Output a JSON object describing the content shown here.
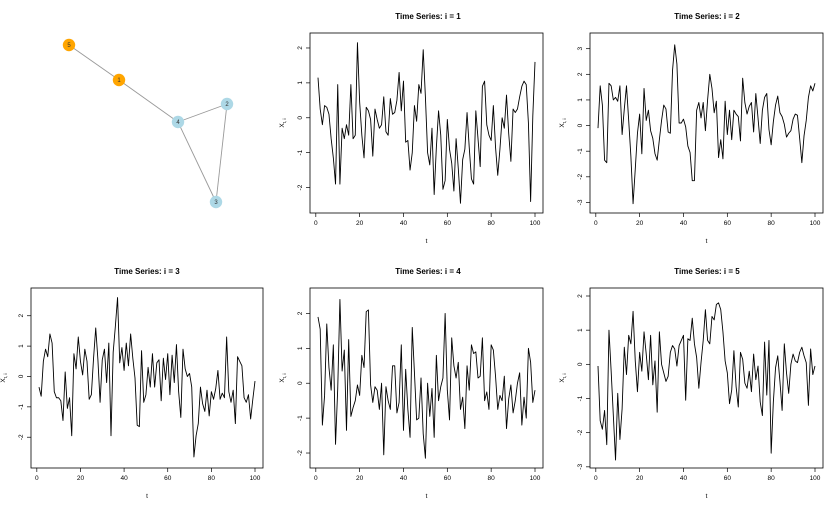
{
  "network": {
    "nodes": [
      {
        "id": "1",
        "color": "#FFA500"
      },
      {
        "id": "2",
        "color": "#ADD8E6"
      },
      {
        "id": "3",
        "color": "#ADD8E6"
      },
      {
        "id": "4",
        "color": "#ADD8E6"
      },
      {
        "id": "5",
        "color": "#FFA500"
      }
    ],
    "edges": [
      [
        "5",
        "1"
      ],
      [
        "1",
        "4"
      ],
      [
        "4",
        "2"
      ],
      [
        "4",
        "3"
      ],
      [
        "2",
        "3"
      ]
    ],
    "edge_color": "#999999"
  },
  "chart_data": [
    {
      "type": "line",
      "title": "Time Series: i = 1",
      "xlabel": "t",
      "ylabel": "X",
      "ylabel_subscript": "t, i",
      "xlim": [
        1,
        100
      ],
      "ylim": [
        -2.5,
        2.2
      ],
      "xticks": [
        0,
        20,
        40,
        60,
        80,
        100
      ],
      "yticks": [
        -2,
        -1,
        0,
        1,
        2
      ],
      "x": [
        1,
        2,
        3,
        4,
        5,
        6,
        7,
        8,
        9,
        10,
        11,
        12,
        13,
        14,
        15,
        16,
        17,
        18,
        19,
        20,
        21,
        22,
        23,
        24,
        25,
        26,
        27,
        28,
        29,
        30,
        31,
        32,
        33,
        34,
        35,
        36,
        37,
        38,
        39,
        40,
        41,
        42,
        43,
        44,
        45,
        46,
        47,
        48,
        49,
        50,
        51,
        52,
        53,
        54,
        55,
        56,
        57,
        58,
        59,
        60,
        61,
        62,
        63,
        64,
        65,
        66,
        67,
        68,
        69,
        70,
        71,
        72,
        73,
        74,
        75,
        76,
        77,
        78,
        79,
        80,
        81,
        82,
        83,
        84,
        85,
        86,
        87,
        88,
        89,
        90,
        91,
        92,
        93,
        94,
        95,
        96,
        97,
        98,
        99,
        100
      ],
      "series": [
        {
          "values": [
            1.15,
            0.25,
            -0.2,
            0.35,
            0.3,
            0.1,
            -0.6,
            -1.15,
            -1.9,
            0.95,
            -1.9,
            -0.3,
            -0.6,
            -0.2,
            -0.5,
            0.95,
            -0.6,
            -0.5,
            2.15,
            0.45,
            -0.5,
            -1.15,
            0.3,
            0.2,
            -0.05,
            -1.1,
            0.25,
            -0.05,
            -0.3,
            -0.2,
            0.6,
            -0.4,
            -0.5,
            0.55,
            0.1,
            0.15,
            0.5,
            1.3,
            0.2,
            1.05,
            -0.7,
            -0.65,
            -1.5,
            -1.0,
            0.35,
            -0.1,
            0.95,
            0.7,
            1.95,
            0.6,
            -1.0,
            -1.35,
            -0.3,
            -2.2,
            -0.85,
            0.2,
            -0.5,
            -2.05,
            -1.8,
            -0.05,
            -0.9,
            -1.3,
            -2.1,
            -0.6,
            -1.45,
            -2.45,
            -1.2,
            -0.9,
            0.15,
            -0.85,
            -1.75,
            -1.9,
            0.2,
            -0.6,
            -1.4,
            0.9,
            1.05,
            -0.2,
            -0.5,
            -0.65,
            0.35,
            -0.85,
            -1.65,
            -0.9,
            0.0,
            -0.3,
            0.65,
            -0.45,
            -1.25,
            0.25,
            0.15,
            0.25,
            0.6,
            0.9,
            1.05,
            0.95,
            -0.15,
            -2.4,
            0.05,
            1.6
          ]
        }
      ]
    },
    {
      "type": "line",
      "title": "Time Series: i = 2",
      "xlabel": "t",
      "ylabel": "X",
      "ylabel_subscript": "t, i",
      "xlim": [
        1,
        100
      ],
      "ylim": [
        -3.1,
        3.3
      ],
      "xticks": [
        0,
        20,
        40,
        60,
        80,
        100
      ],
      "yticks": [
        -3,
        -2,
        -1,
        0,
        1,
        2,
        3
      ],
      "x": [
        1,
        2,
        3,
        4,
        5,
        6,
        7,
        8,
        9,
        10,
        11,
        12,
        13,
        14,
        15,
        16,
        17,
        18,
        19,
        20,
        21,
        22,
        23,
        24,
        25,
        26,
        27,
        28,
        29,
        30,
        31,
        32,
        33,
        34,
        35,
        36,
        37,
        38,
        39,
        40,
        41,
        42,
        43,
        44,
        45,
        46,
        47,
        48,
        49,
        50,
        51,
        52,
        53,
        54,
        55,
        56,
        57,
        58,
        59,
        60,
        61,
        62,
        63,
        64,
        65,
        66,
        67,
        68,
        69,
        70,
        71,
        72,
        73,
        74,
        75,
        76,
        77,
        78,
        79,
        80,
        81,
        82,
        83,
        84,
        85,
        86,
        87,
        88,
        89,
        90,
        91,
        92,
        93,
        94,
        95,
        96,
        97,
        98,
        99,
        100
      ],
      "series": [
        {
          "values": [
            -0.1,
            1.55,
            0.8,
            -1.35,
            -1.45,
            1.65,
            1.55,
            1.0,
            1.1,
            0.95,
            1.55,
            -0.35,
            0.65,
            1.55,
            0.2,
            -1.2,
            -3.05,
            -1.7,
            -0.3,
            0.45,
            -1.1,
            1.45,
            0.2,
            0.6,
            -0.2,
            -0.5,
            -1.1,
            -1.35,
            -0.55,
            0.2,
            0.8,
            0.65,
            -0.25,
            -0.3,
            2.15,
            3.15,
            2.4,
            0.1,
            0.1,
            0.25,
            -0.05,
            -0.8,
            -1.05,
            -2.15,
            -2.15,
            0.6,
            0.9,
            0.3,
            0.9,
            -0.2,
            1.0,
            2.0,
            1.45,
            0.5,
            0.95,
            -1.25,
            -0.55,
            -1.3,
            0.95,
            -0.35,
            0.6,
            -0.55,
            0.6,
            0.45,
            0.35,
            -0.6,
            1.85,
            0.9,
            0.45,
            0.75,
            0.9,
            -0.25,
            1.25,
            0.3,
            -0.7,
            0.6,
            1.1,
            1.25,
            -0.15,
            -0.75,
            0.15,
            0.8,
            1.15,
            0.5,
            0.35,
            0.05,
            -0.45,
            -0.3,
            -0.2,
            0.25,
            0.45,
            0.4,
            -0.5,
            -1.45,
            -0.4,
            0.2,
            1.1,
            1.55,
            1.35,
            1.65
          ]
        }
      ]
    },
    {
      "type": "line",
      "title": "Time Series: i = 3",
      "xlabel": "t",
      "ylabel": "X",
      "ylabel_subscript": "t, i",
      "xlim": [
        1,
        100
      ],
      "ylim": [
        -2.75,
        2.65
      ],
      "xticks": [
        0,
        20,
        40,
        60,
        80,
        100
      ],
      "yticks": [
        -2,
        -1,
        0,
        1,
        2
      ],
      "x": [
        1,
        2,
        3,
        4,
        5,
        6,
        7,
        8,
        9,
        10,
        11,
        12,
        13,
        14,
        15,
        16,
        17,
        18,
        19,
        20,
        21,
        22,
        23,
        24,
        25,
        26,
        27,
        28,
        29,
        30,
        31,
        32,
        33,
        34,
        35,
        36,
        37,
        38,
        39,
        40,
        41,
        42,
        43,
        44,
        45,
        46,
        47,
        48,
        49,
        50,
        51,
        52,
        53,
        54,
        55,
        56,
        57,
        58,
        59,
        60,
        61,
        62,
        63,
        64,
        65,
        66,
        67,
        68,
        69,
        70,
        71,
        72,
        73,
        74,
        75,
        76,
        77,
        78,
        79,
        80,
        81,
        82,
        83,
        84,
        85,
        86,
        87,
        88,
        89,
        90,
        91,
        92,
        93,
        94,
        95,
        96,
        97,
        98,
        99,
        100
      ],
      "series": [
        {
          "values": [
            -0.35,
            -0.65,
            0.5,
            0.9,
            0.65,
            1.4,
            1.1,
            -0.5,
            -0.7,
            -0.7,
            -0.8,
            -1.45,
            0.15,
            -1.05,
            -0.7,
            -1.95,
            0.75,
            0.25,
            1.3,
            0.5,
            0.05,
            0.9,
            0.5,
            -0.75,
            -0.6,
            0.6,
            1.6,
            0.55,
            -0.85,
            0.55,
            0.9,
            -0.2,
            1.1,
            -1.95,
            0.8,
            1.65,
            2.6,
            0.45,
            0.95,
            0.2,
            1.1,
            0.35,
            1.4,
            0.6,
            -0.05,
            -1.6,
            -1.65,
            0.85,
            -0.85,
            -0.6,
            0.3,
            -0.35,
            0.75,
            -0.35,
            0.45,
            0.55,
            -0.8,
            0.6,
            -0.1,
            0.75,
            -0.6,
            0.7,
            -0.2,
            1.05,
            -0.5,
            -1.35,
            0.9,
            0.25,
            0.0,
            0.1,
            -0.35,
            -2.65,
            -1.95,
            -1.55,
            -0.35,
            -0.9,
            -1.15,
            -0.45,
            -1.3,
            -0.5,
            -0.75,
            -0.4,
            0.2,
            -0.75,
            -0.55,
            -0.7,
            1.3,
            -0.5,
            -0.85,
            -0.45,
            -1.55,
            0.65,
            0.5,
            0.35,
            -0.7,
            -0.85,
            -0.6,
            -1.4,
            -0.75,
            -0.15
          ]
        }
      ]
    },
    {
      "type": "line",
      "title": "Time Series: i = 4",
      "xlabel": "t",
      "ylabel": "X",
      "ylabel_subscript": "t, i",
      "xlim": [
        1,
        100
      ],
      "ylim": [
        -2.2,
        2.5
      ],
      "xticks": [
        0,
        20,
        40,
        60,
        80,
        100
      ],
      "yticks": [
        -2,
        -1,
        0,
        1,
        2
      ],
      "x": [
        1,
        2,
        3,
        4,
        5,
        6,
        7,
        8,
        9,
        10,
        11,
        12,
        13,
        14,
        15,
        16,
        17,
        18,
        19,
        20,
        21,
        22,
        23,
        24,
        25,
        26,
        27,
        28,
        29,
        30,
        31,
        32,
        33,
        34,
        35,
        36,
        37,
        38,
        39,
        40,
        41,
        42,
        43,
        44,
        45,
        46,
        47,
        48,
        49,
        50,
        51,
        52,
        53,
        54,
        55,
        56,
        57,
        58,
        59,
        60,
        61,
        62,
        63,
        64,
        65,
        66,
        67,
        68,
        69,
        70,
        71,
        72,
        73,
        74,
        75,
        76,
        77,
        78,
        79,
        80,
        81,
        82,
        83,
        84,
        85,
        86,
        87,
        88,
        89,
        90,
        91,
        92,
        93,
        94,
        95,
        96,
        97,
        98,
        99,
        100
      ],
      "series": [
        {
          "values": [
            1.9,
            1.55,
            -1.2,
            -0.35,
            1.7,
            0.45,
            -0.2,
            1.1,
            -1.75,
            -0.15,
            2.4,
            0.35,
            0.95,
            -1.35,
            1.25,
            -0.95,
            -0.7,
            -0.5,
            -0.05,
            -0.35,
            0.8,
            0.45,
            2.05,
            2.1,
            -0.05,
            -0.55,
            -0.1,
            -0.2,
            -0.75,
            0.0,
            -2.05,
            -0.1,
            -0.5,
            -0.75,
            0.5,
            0.5,
            -0.85,
            -0.55,
            1.1,
            -1.35,
            0.4,
            -0.75,
            -1.55,
            1.6,
            0.3,
            -1.05,
            -1.0,
            0.15,
            -1.45,
            -2.15,
            0.0,
            -0.95,
            -0.15,
            -1.55,
            0.8,
            -0.5,
            -0.1,
            0.15,
            2.0,
            -0.2,
            -1.05,
            1.3,
            0.5,
            0.15,
            0.6,
            -0.75,
            -0.4,
            -1.3,
            0.5,
            -0.2,
            1.1,
            0.85,
            0.9,
            0.15,
            0.2,
            1.3,
            -0.5,
            -0.25,
            -0.75,
            1.1,
            0.95,
            0.2,
            -0.75,
            -0.35,
            -0.5,
            0.2,
            -1.3,
            -0.45,
            -0.05,
            -0.85,
            -0.5,
            0.0,
            0.3,
            -1.2,
            -0.4,
            -1.0,
            1.0,
            0.6,
            -0.55,
            -0.2
          ]
        }
      ]
    },
    {
      "type": "line",
      "title": "Time Series: i = 5",
      "xlabel": "t",
      "ylabel": "X",
      "ylabel_subscript": "t, i",
      "xlim": [
        1,
        100
      ],
      "ylim": [
        -2.8,
        2.0
      ],
      "xticks": [
        0,
        20,
        40,
        60,
        80,
        100
      ],
      "yticks": [
        -3,
        -2,
        -1,
        0,
        1,
        2
      ],
      "x": [
        1,
        2,
        3,
        4,
        5,
        6,
        7,
        8,
        9,
        10,
        11,
        12,
        13,
        14,
        15,
        16,
        17,
        18,
        19,
        20,
        21,
        22,
        23,
        24,
        25,
        26,
        27,
        28,
        29,
        30,
        31,
        32,
        33,
        34,
        35,
        36,
        37,
        38,
        39,
        40,
        41,
        42,
        43,
        44,
        45,
        46,
        47,
        48,
        49,
        50,
        51,
        52,
        53,
        54,
        55,
        56,
        57,
        58,
        59,
        60,
        61,
        62,
        63,
        64,
        65,
        66,
        67,
        68,
        69,
        70,
        71,
        72,
        73,
        74,
        75,
        76,
        77,
        78,
        79,
        80,
        81,
        82,
        83,
        84,
        85,
        86,
        87,
        88,
        89,
        90,
        91,
        92,
        93,
        94,
        95,
        96,
        97,
        98,
        99,
        100
      ],
      "series": [
        {
          "values": [
            -0.05,
            -1.65,
            -1.9,
            -1.35,
            -2.35,
            1.0,
            -0.2,
            -1.5,
            -2.8,
            -0.85,
            -2.2,
            -1.3,
            0.5,
            -0.3,
            0.85,
            0.6,
            1.55,
            0.1,
            -0.8,
            0.35,
            -0.2,
            0.95,
            0.3,
            -0.45,
            0.85,
            -0.6,
            0.1,
            -1.4,
            0.95,
            0.0,
            -0.25,
            -0.5,
            -0.35,
            0.35,
            0.55,
            0.45,
            -0.05,
            0.55,
            0.7,
            0.85,
            -1.05,
            0.75,
            0.7,
            1.35,
            0.6,
            0.2,
            -0.7,
            0.05,
            0.7,
            1.6,
            0.7,
            0.6,
            1.4,
            1.3,
            1.75,
            1.8,
            1.6,
            0.95,
            0.1,
            -0.25,
            -1.15,
            -0.75,
            0.4,
            -0.65,
            -1.25,
            0.35,
            0.15,
            -0.55,
            -0.7,
            -0.2,
            -0.8,
            0.3,
            -0.45,
            -0.05,
            -1.1,
            -1.5,
            0.65,
            -0.9,
            0.7,
            -2.6,
            -1.1,
            -0.1,
            0.25,
            -0.5,
            -1.35,
            0.6,
            -0.25,
            -0.85,
            0.0,
            0.3,
            0.1,
            0.05,
            0.35,
            0.5,
            0.25,
            0.05,
            -1.2,
            0.45,
            -0.3,
            -0.05
          ]
        }
      ]
    }
  ]
}
